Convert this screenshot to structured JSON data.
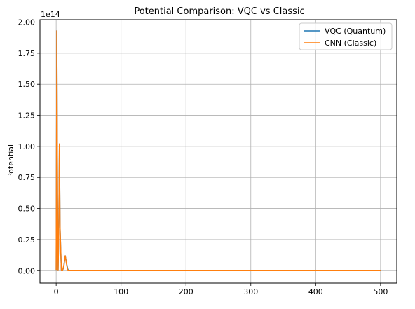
{
  "chart_data": {
    "type": "line",
    "title": "Potential Comparison: VQC vs Classic",
    "xlabel": "",
    "ylabel": "Potential",
    "y_offset_label": "1e14",
    "xlim": [
      -25,
      525
    ],
    "ylim": [
      -0.1,
      2.02
    ],
    "x_ticks": [
      0,
      100,
      200,
      300,
      400,
      500
    ],
    "x_tick_labels": [
      "0",
      "100",
      "200",
      "300",
      "400",
      "500"
    ],
    "y_ticks": [
      0.0,
      0.25,
      0.5,
      0.75,
      1.0,
      1.25,
      1.5,
      1.75,
      2.0
    ],
    "y_tick_labels": [
      "0.00",
      "0.25",
      "0.50",
      "0.75",
      "1.00",
      "1.25",
      "1.50",
      "1.75",
      "2.00"
    ],
    "grid": true,
    "legend_position": "top-right",
    "series": [
      {
        "name": "VQC (Quantum)",
        "color": "#1f77b4",
        "x": [
          0,
          1,
          2,
          3,
          4,
          5,
          6,
          8,
          10,
          12,
          14,
          16,
          18,
          20,
          25,
          30,
          50,
          100,
          200,
          300,
          400,
          500
        ],
        "y": [
          0.0,
          1.93,
          0.6,
          0.0,
          0.3,
          1.02,
          0.35,
          0.0,
          0.0,
          0.04,
          0.12,
          0.06,
          0.01,
          0.0,
          0.0,
          0.0,
          0.0,
          0.0,
          0.0,
          0.0,
          0.0,
          0.0
        ]
      },
      {
        "name": "CNN (Classic)",
        "color": "#ff7f0e",
        "x": [
          0,
          1,
          2,
          3,
          4,
          5,
          6,
          8,
          10,
          12,
          14,
          16,
          18,
          20,
          25,
          30,
          50,
          100,
          200,
          300,
          400,
          500
        ],
        "y": [
          0.0,
          1.93,
          0.6,
          0.0,
          0.3,
          1.02,
          0.35,
          0.0,
          0.0,
          0.05,
          0.12,
          0.05,
          0.0,
          0.0,
          0.0,
          0.0,
          0.0,
          0.0,
          0.0,
          0.0,
          0.0,
          0.0
        ]
      }
    ]
  }
}
